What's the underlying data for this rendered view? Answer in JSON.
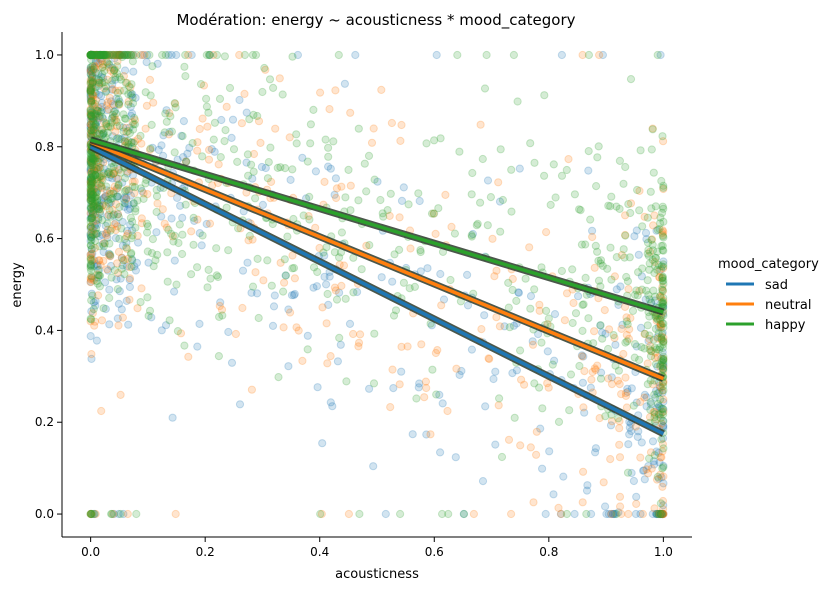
{
  "chart_data": {
    "type": "scatter",
    "title": "Modération: energy ~ acousticness * mood_category",
    "xlabel": "acousticness",
    "ylabel": "energy",
    "xlim": [
      -0.05,
      1.05
    ],
    "ylim": [
      -0.05,
      1.05
    ],
    "xticks": [
      0.0,
      0.2,
      0.4,
      0.6,
      0.8,
      1.0
    ],
    "yticks": [
      0.0,
      0.2,
      0.4,
      0.6,
      0.8,
      1.0
    ],
    "grid": false,
    "legend": {
      "title": "mood_category",
      "placement": "right",
      "entries": [
        "sad",
        "neutral",
        "happy"
      ]
    },
    "series": [
      {
        "name": "sad",
        "color": "#1f77b4",
        "fit_line": {
          "x": [
            0.0,
            1.0
          ],
          "y": [
            0.8,
            0.175
          ]
        }
      },
      {
        "name": "neutral",
        "color": "#ff7f0e",
        "fit_line": {
          "x": [
            0.0,
            1.0
          ],
          "y": [
            0.81,
            0.295
          ]
        }
      },
      {
        "name": "happy",
        "color": "#2ca02c",
        "fit_line": {
          "x": [
            0.0,
            1.0
          ],
          "y": [
            0.815,
            0.44
          ]
        }
      }
    ],
    "scatter_alpha": 0.2
  }
}
